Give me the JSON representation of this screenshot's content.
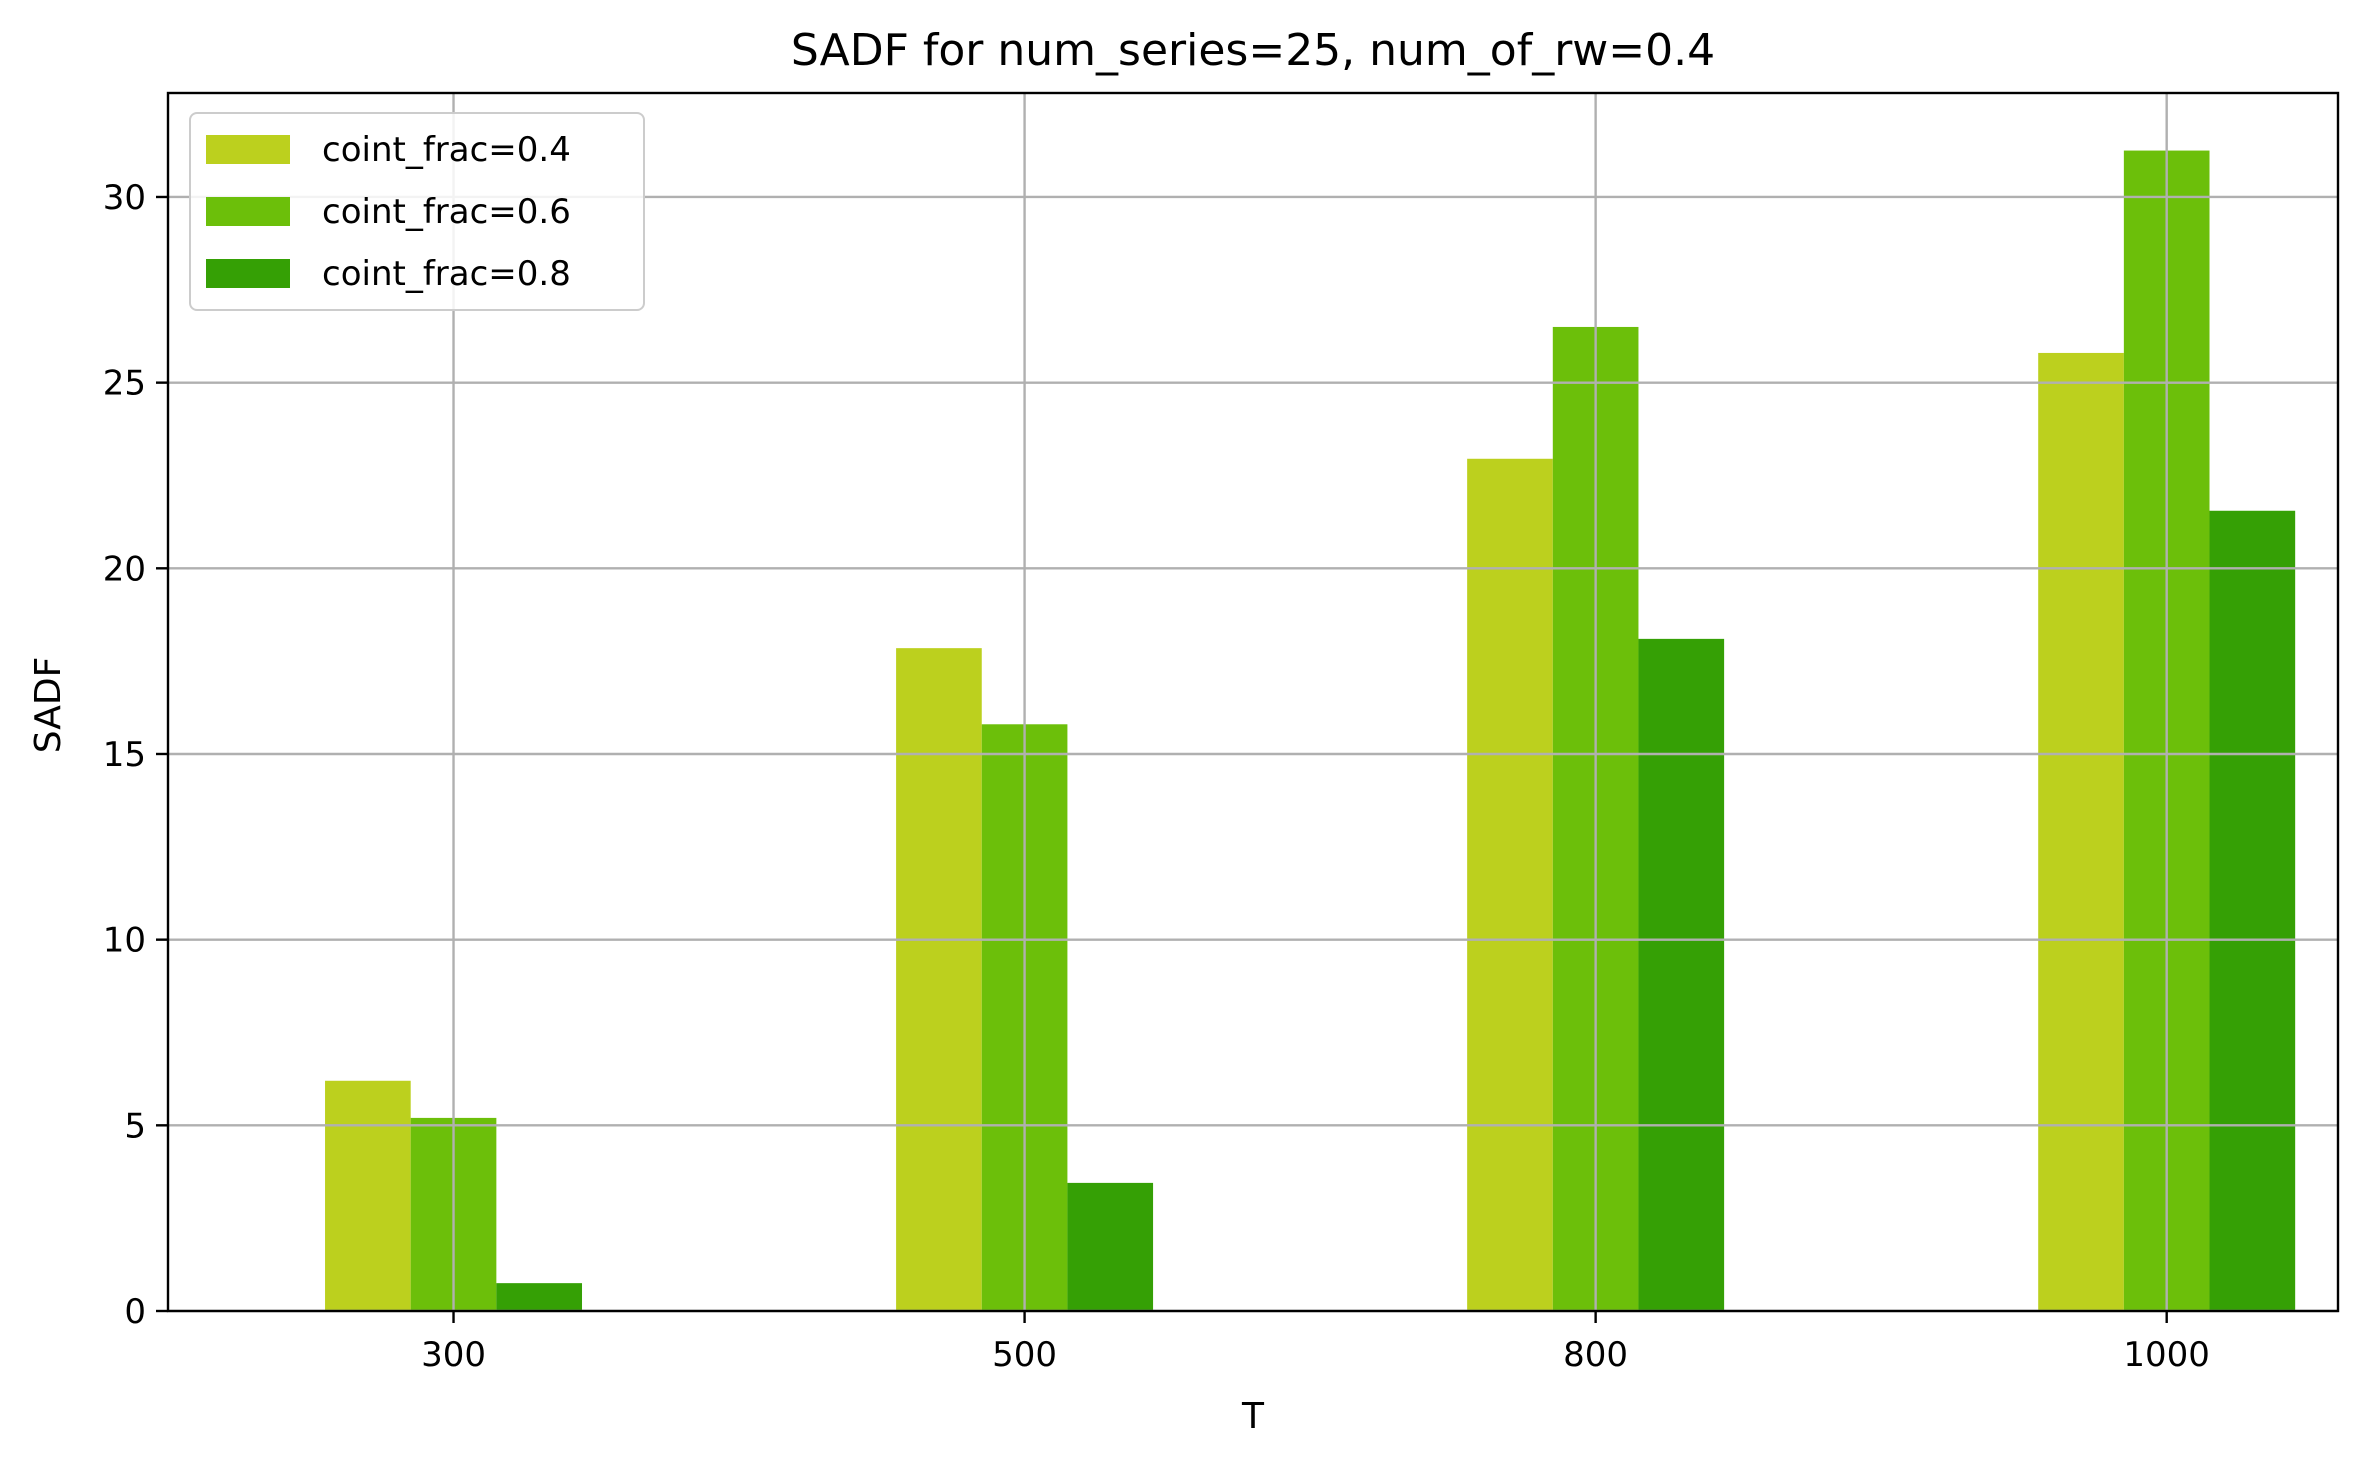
{
  "chart_data": {
    "type": "bar",
    "title": "SADF for num_series=25, num_of_rw=0.4",
    "xlabel": "T",
    "ylabel": "SADF",
    "categories": [
      "300",
      "500",
      "800",
      "1000"
    ],
    "ylim": [
      0,
      32.8
    ],
    "yticks": [
      "0",
      "5",
      "10",
      "15",
      "20",
      "25",
      "30"
    ],
    "grid": true,
    "legend_position": "top-left",
    "series": [
      {
        "name": "coint_frac=0.4",
        "color": "#bcd01e",
        "values": [
          6.2,
          17.85,
          22.95,
          25.8
        ]
      },
      {
        "name": "coint_frac=0.6",
        "color": "#6cbf0a",
        "values": [
          5.2,
          15.8,
          26.5,
          31.25
        ]
      },
      {
        "name": "coint_frac=0.8",
        "color": "#35a005",
        "values": [
          0.75,
          3.45,
          18.1,
          21.55
        ]
      }
    ]
  }
}
